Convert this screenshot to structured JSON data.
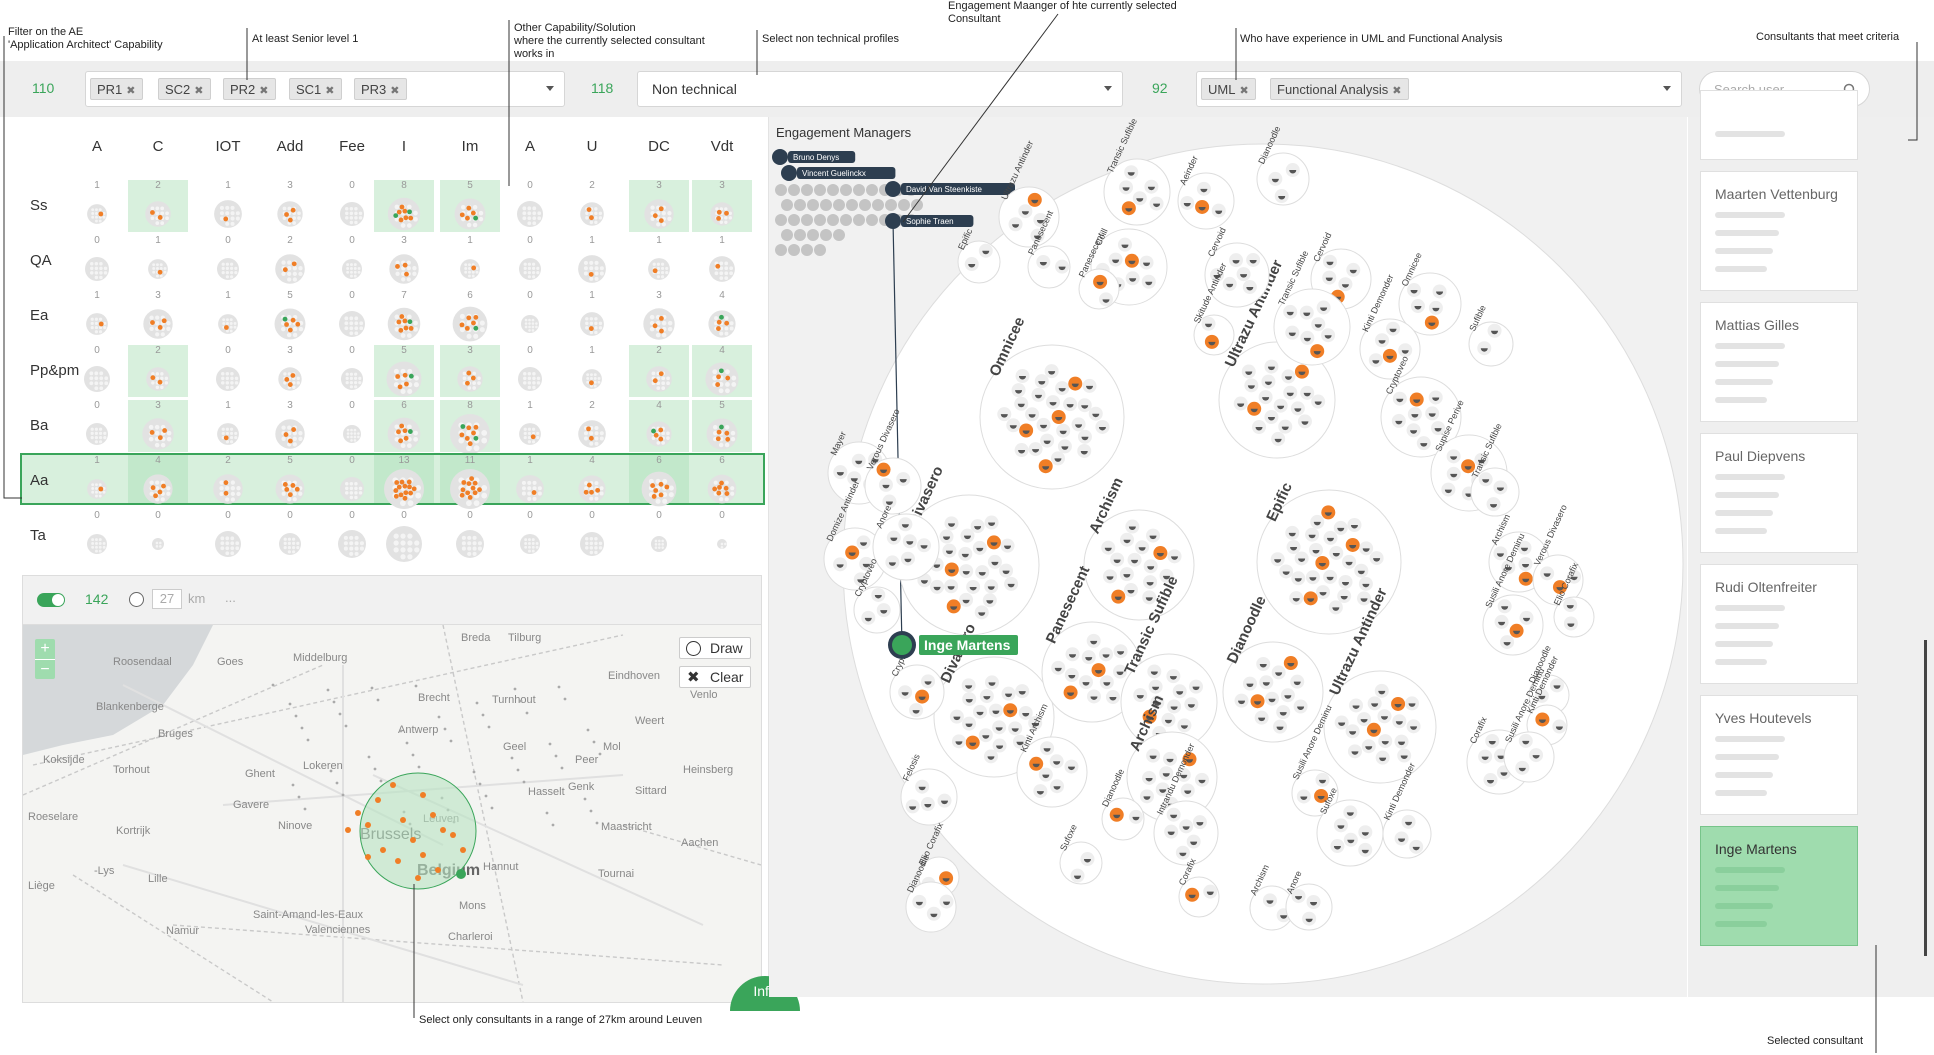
{
  "annotations": {
    "filter_ae": "Filter on the AE\n'Application Architect' Capability",
    "senior": "At least Senior level 1",
    "other_capability": "Other Capability/Solution\nwhere the currently selected consultant\nworks in",
    "non_technical": "Select non technical profiles",
    "engagement_manager": "Engagement Maanger of hte currently selected\nConsultant",
    "uml_fa": "Who have experience in UML and Functional Analysis",
    "consultants_criteria": "Consultants that meet criteria",
    "range": "Select only consultants in a range of 27km around Leuven",
    "selected_consultant": "Selected consultant"
  },
  "filters": {
    "level": {
      "count": "110",
      "chips": [
        "PR1",
        "SC2",
        "PR2",
        "SC1",
        "PR3"
      ]
    },
    "profile": {
      "count": "118",
      "value": "Non technical"
    },
    "skills": {
      "count": "92",
      "chips": [
        "UML",
        "Functional Analysis"
      ]
    },
    "search": {
      "placeholder": "Search user..."
    }
  },
  "matrix": {
    "columns": [
      "A",
      "C",
      "IOT",
      "Add",
      "Fee",
      "I",
      "Im",
      "A",
      "U",
      "DC",
      "Vdt"
    ],
    "rows": [
      {
        "label": "Ss",
        "counts": [
          "1",
          "2",
          "1",
          "3",
          "0",
          "8",
          "5",
          "0",
          "2",
          "3",
          "3"
        ]
      },
      {
        "label": "QA",
        "counts": [
          "0",
          "1",
          "0",
          "2",
          "0",
          "3",
          "1",
          "0",
          "1",
          "1",
          "1"
        ]
      },
      {
        "label": "Ea",
        "counts": [
          "1",
          "3",
          "1",
          "5",
          "0",
          "7",
          "6",
          "0",
          "1",
          "3",
          "4"
        ]
      },
      {
        "label": "Pp&pm",
        "counts": [
          "0",
          "2",
          "0",
          "3",
          "0",
          "5",
          "3",
          "0",
          "1",
          "2",
          "4"
        ]
      },
      {
        "label": "Ba",
        "counts": [
          "0",
          "3",
          "1",
          "3",
          "0",
          "6",
          "8",
          "1",
          "2",
          "4",
          "5"
        ]
      },
      {
        "label": "Aa",
        "counts": [
          "1",
          "4",
          "2",
          "5",
          "0",
          "13",
          "11",
          "1",
          "4",
          "6",
          "6"
        ]
      },
      {
        "label": "Ta",
        "counts": [
          "0",
          "0",
          "0",
          "0",
          "0",
          "0",
          "0",
          "0",
          "0",
          "0",
          "0"
        ]
      }
    ]
  },
  "map": {
    "count": "142",
    "radius": "27",
    "unit": "km",
    "ellipsis": "...",
    "draw_label": "Draw",
    "clear_label": "Clear",
    "zoom_in": "+",
    "zoom_out": "−",
    "info_label": "Info",
    "places": [
      "Breda",
      "Tilburg",
      "Middelburg",
      "Goes",
      "Roosendaal",
      "Eindhoven",
      "Brecht",
      "Turnhout",
      "Venlo",
      "Blankenberge",
      "Antwerp",
      "Weert",
      "Bruges",
      "Geel",
      "Mol",
      "Peer",
      "Koksijde",
      "Lokeren",
      "Torhout",
      "Ghent",
      "Hasselt",
      "Genk",
      "Heinsberg",
      "Roeselare",
      "Gavere",
      "Ninove",
      "Brussels",
      "Leuven",
      "Maastricht",
      "Sittard",
      "Kortrijk",
      "Aachen",
      "Belgium",
      "Hannut",
      "-Lys",
      "Lille",
      "Tournai",
      "Liège",
      "Saint-Amand-les-Eaux",
      "Mons",
      "Namur",
      "Valenciennes",
      "Charleroi"
    ]
  },
  "engagement_managers": {
    "title": "Engagement Managers",
    "names": [
      "Bruno Denys",
      "Vincent Guelinckx",
      "David Van Steenkiste",
      "Sophie Traen"
    ]
  },
  "selected_consultant_label": "Inge Martens",
  "clusters": {
    "big": [
      "Omnicee",
      "Ultrazu Antinder",
      "Divasero",
      "Epific",
      "Archism",
      "Divasero",
      "Panesecent",
      "Transic Sufible",
      "Dianoodle",
      "Ultrazu Antinder",
      "Archism"
    ],
    "small": [
      "Transic Sufible",
      "Aeinder",
      "Dianoodle",
      "Ultrazu Antinder",
      "Coill",
      "Cervoid",
      "Cervoid",
      "Skitude Antinder",
      "Epific",
      "Panesecent",
      "Panesecent",
      "Transic Sufible",
      "Omnicee",
      "Kinti Demonder",
      "Sufible",
      "Cryptoveo",
      "Supise Perive",
      "Transic Sufible",
      "Archism",
      "Verous Divasero",
      "Mayer",
      "Verous Divasero",
      "Domize Antinder",
      "Anore",
      "Cryptoveo",
      "Susili Anore Deminu",
      "Elio Corafix",
      "Dianoodle",
      "Kinti Demonder",
      "Corafix",
      "Susili Anore Deminu",
      "Cryptoveo",
      "Felosis",
      "Kinti Archism",
      "Dianoodle",
      "Intrandu Demonder",
      "Sufoxe",
      "Susili Anore Deminu",
      "Sufoxe",
      "Kinti Demonder",
      "Corafix",
      "Archism",
      "Anore",
      "Elio Corafix",
      "Dianoodle",
      "Antinder"
    ]
  },
  "consultants": [
    {
      "name": "",
      "selected": false
    },
    {
      "name": "Maarten Vettenburg",
      "selected": false
    },
    {
      "name": "Mattias Gilles",
      "selected": false
    },
    {
      "name": "Paul Diepvens",
      "selected": false
    },
    {
      "name": "Rudi Oltenfreiter",
      "selected": false
    },
    {
      "name": "Yves Houtevels",
      "selected": false
    },
    {
      "name": "Inge Martens",
      "selected": true
    }
  ],
  "colors": {
    "accent_green": "#3aa55a",
    "highlight": "#d8f0dd",
    "orange": "#f07e26",
    "navy": "#2d3e50",
    "selected_card": "#9fdcae"
  }
}
